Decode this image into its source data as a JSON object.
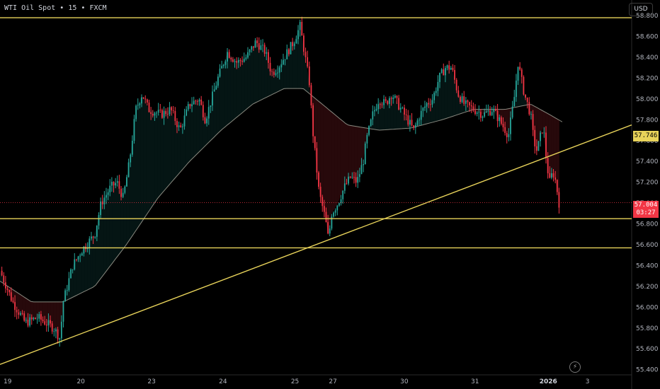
{
  "header": {
    "symbol": "WTI Oil Spot",
    "sep1": "•",
    "interval": "15",
    "sep2": "•",
    "source": "FXCM"
  },
  "currency_label": "USD",
  "last_price": {
    "value": "57.004",
    "countdown": "03:27"
  },
  "trendline_price": "57.746",
  "icons": {
    "flash": "flash-icon"
  },
  "colors": {
    "up": "#26a69a",
    "down": "#f23645",
    "line": "#e8d35a",
    "ma": "#8a8a80"
  },
  "chart_data": {
    "type": "candlestick",
    "y_range": [
      55.35,
      58.95
    ],
    "y_ticks": [
      "58.800",
      "58.600",
      "58.400",
      "58.200",
      "58.000",
      "57.800",
      "57.600",
      "57.400",
      "57.200",
      "57.000",
      "56.800",
      "56.600",
      "56.400",
      "56.200",
      "56.000",
      "55.800",
      "55.600",
      "55.400"
    ],
    "x_labels": [
      "19",
      "20",
      "23",
      "24",
      "25",
      "27",
      "30",
      "31",
      "2026",
      "3"
    ],
    "horizontal_levels": [
      58.78,
      56.85,
      56.57
    ],
    "trendline": {
      "from": {
        "x": 0,
        "y": 55.45
      },
      "to": {
        "x": 1,
        "y": 57.75
      }
    },
    "price_path": [
      [
        0,
        56.35
      ],
      [
        0.02,
        56.05
      ],
      [
        0.04,
        55.85
      ],
      [
        0.06,
        55.9
      ],
      [
        0.085,
        55.8
      ],
      [
        0.095,
        55.7
      ],
      [
        0.1,
        56.05
      ],
      [
        0.115,
        56.4
      ],
      [
        0.13,
        56.55
      ],
      [
        0.15,
        56.7
      ],
      [
        0.16,
        57.0
      ],
      [
        0.175,
        57.15
      ],
      [
        0.185,
        57.2
      ],
      [
        0.195,
        57.05
      ],
      [
        0.205,
        57.4
      ],
      [
        0.215,
        57.9
      ],
      [
        0.225,
        58.05
      ],
      [
        0.235,
        57.9
      ],
      [
        0.255,
        57.85
      ],
      [
        0.27,
        57.9
      ],
      [
        0.285,
        57.7
      ],
      [
        0.3,
        57.95
      ],
      [
        0.315,
        58.0
      ],
      [
        0.325,
        57.8
      ],
      [
        0.345,
        58.2
      ],
      [
        0.36,
        58.45
      ],
      [
        0.375,
        58.35
      ],
      [
        0.39,
        58.4
      ],
      [
        0.405,
        58.55
      ],
      [
        0.42,
        58.45
      ],
      [
        0.43,
        58.25
      ],
      [
        0.44,
        58.3
      ],
      [
        0.455,
        58.45
      ],
      [
        0.465,
        58.55
      ],
      [
        0.475,
        58.7
      ],
      [
        0.49,
        58.15
      ],
      [
        0.495,
        57.7
      ],
      [
        0.5,
        57.4
      ],
      [
        0.505,
        57.1
      ],
      [
        0.515,
        56.85
      ],
      [
        0.52,
        56.65
      ],
      [
        0.525,
        56.9
      ],
      [
        0.535,
        57.0
      ],
      [
        0.545,
        57.15
      ],
      [
        0.555,
        57.25
      ],
      [
        0.565,
        57.2
      ],
      [
        0.575,
        57.4
      ],
      [
        0.58,
        57.6
      ],
      [
        0.59,
        57.85
      ],
      [
        0.6,
        58.0
      ],
      [
        0.61,
        57.95
      ],
      [
        0.62,
        58.05
      ],
      [
        0.63,
        57.95
      ],
      [
        0.64,
        57.85
      ],
      [
        0.65,
        57.75
      ],
      [
        0.655,
        57.7
      ],
      [
        0.665,
        57.85
      ],
      [
        0.675,
        57.95
      ],
      [
        0.685,
        58.0
      ],
      [
        0.695,
        58.2
      ],
      [
        0.705,
        58.3
      ],
      [
        0.715,
        58.3
      ],
      [
        0.725,
        58.05
      ],
      [
        0.735,
        57.95
      ],
      [
        0.75,
        57.9
      ],
      [
        0.765,
        57.85
      ],
      [
        0.78,
        57.9
      ],
      [
        0.795,
        57.75
      ],
      [
        0.805,
        57.65
      ],
      [
        0.815,
        58.05
      ],
      [
        0.82,
        58.35
      ],
      [
        0.83,
        58.05
      ],
      [
        0.84,
        57.85
      ],
      [
        0.845,
        57.6
      ],
      [
        0.85,
        57.5
      ],
      [
        0.86,
        57.75
      ],
      [
        0.865,
        57.4
      ],
      [
        0.87,
        57.2
      ],
      [
        0.875,
        57.3
      ],
      [
        0.88,
        57.2
      ],
      [
        0.885,
        57.0
      ]
    ],
    "ma_path": [
      [
        0,
        56.25
      ],
      [
        0.05,
        56.05
      ],
      [
        0.1,
        56.05
      ],
      [
        0.15,
        56.2
      ],
      [
        0.2,
        56.6
      ],
      [
        0.25,
        57.05
      ],
      [
        0.3,
        57.4
      ],
      [
        0.35,
        57.7
      ],
      [
        0.4,
        57.95
      ],
      [
        0.45,
        58.1
      ],
      [
        0.48,
        58.1
      ],
      [
        0.51,
        57.95
      ],
      [
        0.55,
        57.75
      ],
      [
        0.6,
        57.7
      ],
      [
        0.65,
        57.72
      ],
      [
        0.7,
        57.8
      ],
      [
        0.75,
        57.9
      ],
      [
        0.8,
        57.9
      ],
      [
        0.84,
        57.95
      ],
      [
        0.87,
        57.85
      ],
      [
        0.89,
        57.78
      ]
    ]
  }
}
